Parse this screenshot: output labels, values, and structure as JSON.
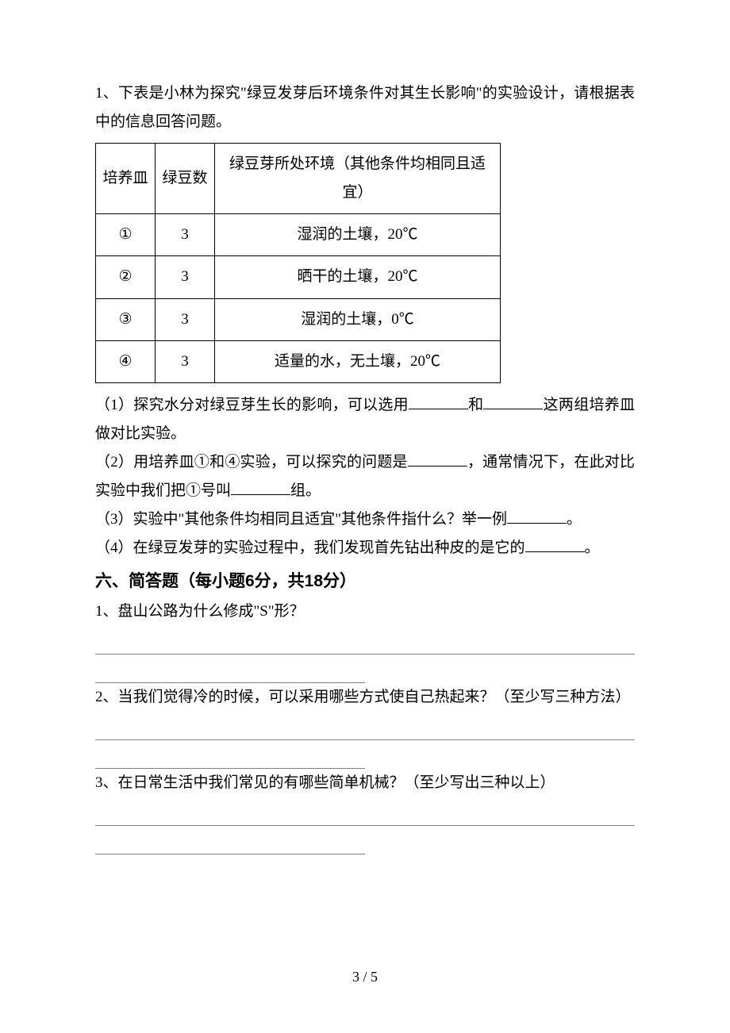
{
  "q1": {
    "intro": "1、下表是小林为探究\"绿豆发芽后环境条件对其生长影响\"的实验设计，请根据表中的信息回答问题。",
    "table": {
      "header": {
        "c1": "培养皿",
        "c2": "绿豆数",
        "c3": "绿豆芽所处环境（其他条件均相同且适宜）"
      },
      "rows": [
        {
          "c1": "①",
          "c2": "3",
          "c3": "湿润的土壤，20℃"
        },
        {
          "c1": "②",
          "c2": "3",
          "c3": "晒干的土壤，20℃"
        },
        {
          "c1": "③",
          "c2": "3",
          "c3": "湿润的土壤，0℃"
        },
        {
          "c1": "④",
          "c2": "3",
          "c3": "适量的水，无土壤，20℃"
        }
      ]
    },
    "sub1a": "（1）探究水分对绿豆芽生长的影响，可以选用",
    "sub1b": "和",
    "sub1c": "这两组培养皿做对比实验。",
    "sub2a": "（2）用培养皿①和④实验，可以探究的问题是",
    "sub2b": "，通常情况下，在此对比实验中我们把①号叫",
    "sub2c": "组。",
    "sub3a": "（3）实验中\"其他条件均相同且适宜\"其他条件指什么？举一例",
    "sub3b": "。",
    "sub4a": "（4）在绿豆发芽的实验过程中，我们发现首先钻出种皮的是它的",
    "sub4b": "。"
  },
  "section6": {
    "heading": "六、简答题（每小题6分，共18分）"
  },
  "qa1": "1、盘山公路为什么修成\"S\"形？",
  "qa2": "2、当我们觉得冷的时候，可以采用哪些方式使自己热起来？（至少写三种方法）",
  "qa3": "3、在日常生活中我们常见的有哪些简单机械？（至少写出三种以上）",
  "footer": "3 / 5"
}
